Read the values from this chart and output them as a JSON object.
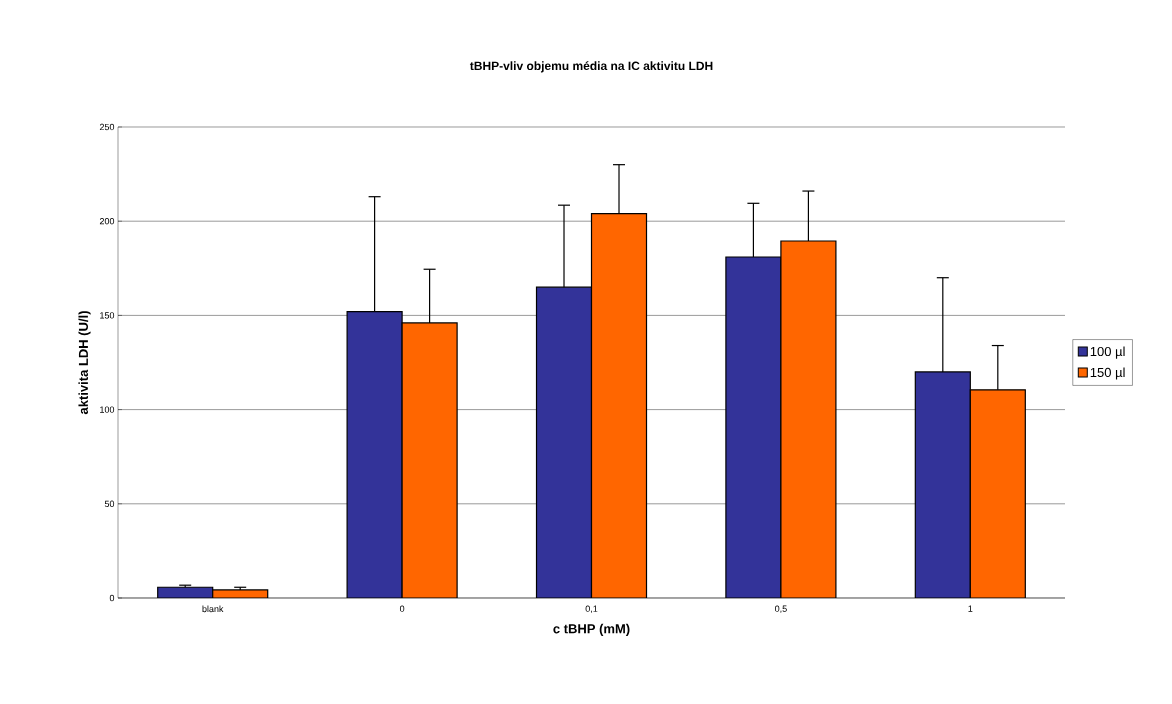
{
  "chart_data": {
    "type": "bar",
    "title": "tBHP-vliv objemu média na IC aktivitu LDH",
    "xlabel": "c tBHP (mM)",
    "ylabel": "aktivita LDH (U/l)",
    "categories": [
      "blank",
      "0",
      "0,1",
      "0,5",
      "1"
    ],
    "series": [
      {
        "name": "100 µl",
        "color": "#333399",
        "values": [
          5.7,
          152,
          165,
          181,
          120
        ],
        "errors": [
          [
            5.7,
            6.8
          ],
          [
            152,
            213
          ],
          [
            165,
            208.5
          ],
          [
            181,
            209.5
          ],
          [
            120,
            170
          ]
        ]
      },
      {
        "name": "150 µl",
        "color": "#ff6600",
        "values": [
          4.3,
          146,
          204,
          189.5,
          110.5
        ],
        "errors": [
          [
            4.3,
            5.7
          ],
          [
            146,
            174.5
          ],
          [
            204,
            230
          ],
          [
            189.5,
            216
          ],
          [
            110.5,
            134
          ]
        ]
      }
    ],
    "ylim": [
      0,
      250
    ],
    "yticks": [
      0,
      50,
      100,
      150,
      200,
      250
    ],
    "grid": "y",
    "legend": "right"
  }
}
